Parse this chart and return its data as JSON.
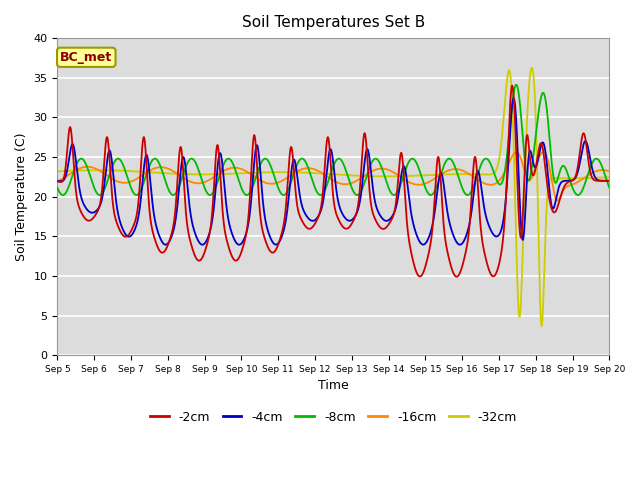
{
  "title": "Soil Temperatures Set B",
  "xlabel": "Time",
  "ylabel": "Soil Temperature (C)",
  "ylim": [
    0,
    40
  ],
  "annotation": "BC_met",
  "legend_labels": [
    "-2cm",
    "-4cm",
    "-8cm",
    "-16cm",
    "-32cm"
  ],
  "legend_colors": [
    "#cc0000",
    "#0000cc",
    "#00bb00",
    "#ff8800",
    "#cccc00"
  ],
  "bg_color": "#dcdcdc",
  "fig_bg": "#ffffff",
  "grid_color": "#ffffff",
  "xlim": [
    0,
    15
  ],
  "yticks": [
    0,
    5,
    10,
    15,
    20,
    25,
    30,
    35,
    40
  ]
}
